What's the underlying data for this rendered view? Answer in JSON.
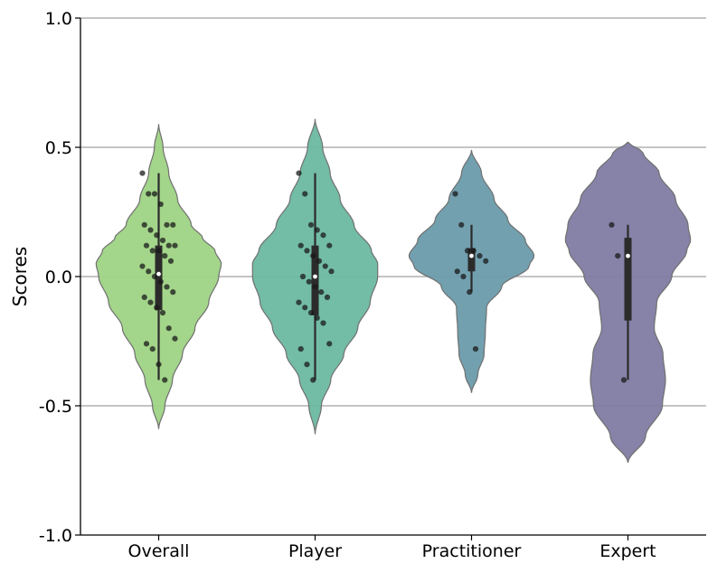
{
  "chart_data": {
    "type": "violin",
    "title": "",
    "xlabel": "",
    "ylabel": "Scores",
    "ylim": [
      -1.0,
      1.0
    ],
    "yticks": [
      1.0,
      0.5,
      0.0,
      -0.5,
      -1.0
    ],
    "ytick_labels": [
      "1.0",
      "0.5",
      "0.0",
      "-0.5",
      "-1.0"
    ],
    "grid": "horizontal",
    "legend": "none",
    "categories": [
      "Overall",
      "Player",
      "Practitioner",
      "Expert"
    ],
    "series": [
      {
        "category": "Overall",
        "color": "#9ed384",
        "range": [
          -0.59,
          0.59
        ],
        "density": [
          [
            -0.59,
            0
          ],
          [
            -0.5,
            0.1
          ],
          [
            -0.4,
            0.22
          ],
          [
            -0.3,
            0.38
          ],
          [
            -0.2,
            0.58
          ],
          [
            -0.1,
            0.8
          ],
          [
            0.0,
            0.96
          ],
          [
            0.05,
            1.0
          ],
          [
            0.1,
            0.9
          ],
          [
            0.15,
            0.7
          ],
          [
            0.2,
            0.52
          ],
          [
            0.3,
            0.3
          ],
          [
            0.4,
            0.16
          ],
          [
            0.5,
            0.07
          ],
          [
            0.59,
            0
          ]
        ],
        "quartiles": [
          -0.13,
          0.01,
          0.12
        ],
        "whiskers": [
          -0.4,
          0.4
        ],
        "points": [
          0.4,
          0.32,
          0.32,
          0.28,
          0.2,
          0.2,
          0.2,
          0.18,
          0.16,
          0.14,
          0.12,
          0.12,
          0.12,
          0.1,
          0.1,
          0.08,
          0.06,
          0.04,
          0.02,
          0.0,
          -0.02,
          -0.04,
          -0.06,
          -0.08,
          -0.1,
          -0.12,
          -0.14,
          -0.2,
          -0.24,
          -0.26,
          -0.28,
          -0.34,
          -0.4
        ]
      },
      {
        "category": "Player",
        "color": "#6bb8a1",
        "range": [
          -0.61,
          0.61
        ],
        "density": [
          [
            -0.61,
            0
          ],
          [
            -0.5,
            0.1
          ],
          [
            -0.4,
            0.25
          ],
          [
            -0.3,
            0.46
          ],
          [
            -0.2,
            0.68
          ],
          [
            -0.1,
            0.88
          ],
          [
            0.0,
            1.0
          ],
          [
            0.05,
            1.0
          ],
          [
            0.1,
            0.9
          ],
          [
            0.2,
            0.62
          ],
          [
            0.3,
            0.4
          ],
          [
            0.4,
            0.24
          ],
          [
            0.5,
            0.12
          ],
          [
            0.61,
            0
          ]
        ],
        "quartiles": [
          -0.15,
          0.0,
          0.12
        ],
        "whiskers": [
          -0.4,
          0.4
        ],
        "points": [
          0.4,
          0.32,
          0.2,
          0.18,
          0.16,
          0.12,
          0.12,
          0.1,
          0.08,
          0.06,
          0.04,
          0.02,
          0.0,
          -0.02,
          -0.04,
          -0.06,
          -0.08,
          -0.1,
          -0.12,
          -0.14,
          -0.16,
          -0.18,
          -0.26,
          -0.28,
          -0.34,
          -0.4
        ]
      },
      {
        "category": "Practitioner",
        "color": "#6a9bab",
        "range": [
          -0.45,
          0.49
        ],
        "density": [
          [
            -0.45,
            0
          ],
          [
            -0.38,
            0.1
          ],
          [
            -0.3,
            0.2
          ],
          [
            -0.22,
            0.22
          ],
          [
            -0.12,
            0.24
          ],
          [
            -0.04,
            0.48
          ],
          [
            0.04,
            0.92
          ],
          [
            0.08,
            1.0
          ],
          [
            0.14,
            0.86
          ],
          [
            0.22,
            0.58
          ],
          [
            0.3,
            0.36
          ],
          [
            0.4,
            0.16
          ],
          [
            0.49,
            0
          ]
        ],
        "quartiles": [
          0.02,
          0.08,
          0.11
        ],
        "whiskers": [
          -0.06,
          0.2
        ],
        "points": [
          0.32,
          0.2,
          0.1,
          0.1,
          0.08,
          0.06,
          0.02,
          0.0,
          -0.06,
          -0.28
        ]
      },
      {
        "category": "Expert",
        "color": "#7f7ba3",
        "range": [
          -0.72,
          0.52
        ],
        "density": [
          [
            -0.72,
            0
          ],
          [
            -0.62,
            0.28
          ],
          [
            -0.5,
            0.55
          ],
          [
            -0.4,
            0.6
          ],
          [
            -0.3,
            0.56
          ],
          [
            -0.2,
            0.42
          ],
          [
            -0.1,
            0.46
          ],
          [
            0.0,
            0.7
          ],
          [
            0.1,
            0.94
          ],
          [
            0.14,
            1.0
          ],
          [
            0.2,
            0.96
          ],
          [
            0.3,
            0.76
          ],
          [
            0.4,
            0.5
          ],
          [
            0.48,
            0.24
          ],
          [
            0.52,
            0
          ]
        ],
        "quartiles": [
          -0.17,
          0.08,
          0.15
        ],
        "whiskers": [
          -0.4,
          0.2
        ],
        "points": [
          0.2,
          0.08,
          -0.4
        ]
      }
    ]
  }
}
